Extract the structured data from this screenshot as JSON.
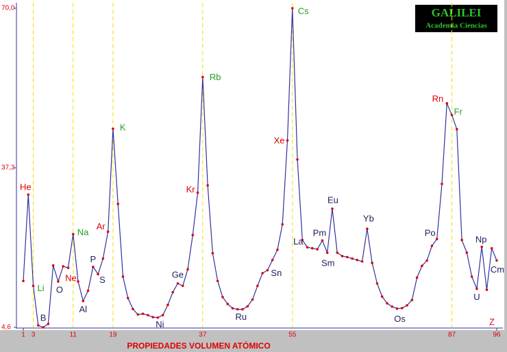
{
  "logo": {
    "title": "GALILEI",
    "subtitle": "Academia Ciencias"
  },
  "chart_data": {
    "type": "line",
    "title": "PROPIEDADES VOLUMEN ATÓMICO",
    "x_label": "Z",
    "x": [
      1,
      2,
      3,
      4,
      5,
      6,
      7,
      8,
      9,
      10,
      11,
      12,
      13,
      14,
      15,
      16,
      17,
      18,
      19,
      20,
      21,
      22,
      23,
      24,
      25,
      26,
      27,
      28,
      29,
      30,
      31,
      32,
      33,
      34,
      35,
      36,
      37,
      38,
      39,
      40,
      41,
      42,
      43,
      44,
      45,
      46,
      47,
      48,
      49,
      50,
      51,
      52,
      53,
      54,
      55,
      56,
      57,
      58,
      59,
      60,
      61,
      62,
      63,
      64,
      65,
      66,
      67,
      68,
      69,
      70,
      71,
      72,
      73,
      74,
      75,
      76,
      77,
      78,
      79,
      80,
      81,
      82,
      83,
      84,
      85,
      86,
      87,
      88,
      89,
      90,
      91,
      92,
      93,
      94,
      95,
      96
    ],
    "series": [
      {
        "name": "Volumen atómico",
        "color": "#3030a0",
        "point_color": "#e00000",
        "values": [
          14.1,
          31.8,
          13.1,
          5.0,
          4.6,
          5.3,
          17.3,
          14.0,
          17.1,
          16.8,
          23.7,
          14.0,
          10.0,
          12.1,
          17.0,
          15.5,
          18.7,
          24.2,
          45.3,
          29.9,
          15.0,
          10.6,
          8.35,
          7.23,
          7.39,
          7.1,
          6.7,
          6.6,
          7.1,
          9.2,
          11.8,
          13.6,
          13.1,
          16.5,
          23.5,
          32.2,
          55.9,
          33.7,
          19.8,
          14.1,
          10.8,
          9.4,
          8.5,
          8.3,
          8.3,
          8.9,
          10.3,
          13.1,
          15.7,
          16.3,
          18.4,
          20.5,
          25.7,
          42.9,
          70.0,
          39.0,
          22.5,
          21.0,
          20.8,
          20.6,
          22.4,
          19.9,
          28.9,
          19.9,
          19.2,
          19.0,
          18.7,
          18.4,
          18.1,
          24.8,
          17.8,
          13.6,
          10.9,
          9.53,
          8.85,
          8.43,
          8.54,
          9.1,
          10.2,
          14.8,
          17.2,
          18.3,
          21.3,
          22.7,
          34,
          50.5,
          48.1,
          45.2,
          22.5,
          19.9,
          15.0,
          12.5,
          21.1,
          12.3,
          20.8,
          18.3
        ]
      }
    ],
    "annotations": [
      {
        "text": "He",
        "x": 2,
        "color": "#e00000"
      },
      {
        "text": "Li",
        "x": 3,
        "color": "#20a020"
      },
      {
        "text": "B",
        "x": 5,
        "color": "#202060"
      },
      {
        "text": "O",
        "x": 8,
        "color": "#202060"
      },
      {
        "text": "Ne",
        "x": 10,
        "color": "#e00000"
      },
      {
        "text": "Na",
        "x": 11,
        "color": "#20a020"
      },
      {
        "text": "Al",
        "x": 13,
        "color": "#202060"
      },
      {
        "text": "P",
        "x": 15,
        "color": "#202060"
      },
      {
        "text": "S",
        "x": 16,
        "color": "#202060"
      },
      {
        "text": "Ar",
        "x": 18,
        "color": "#e00000"
      },
      {
        "text": "K",
        "x": 19,
        "color": "#20a020"
      },
      {
        "text": "Ge",
        "x": 32,
        "color": "#202060"
      },
      {
        "text": "Ni",
        "x": 28,
        "color": "#202060"
      },
      {
        "text": "Kr",
        "x": 36,
        "color": "#e00000"
      },
      {
        "text": "Rb",
        "x": 37,
        "color": "#20a020"
      },
      {
        "text": "Ru",
        "x": 44,
        "color": "#202060"
      },
      {
        "text": "Sn",
        "x": 50,
        "color": "#202060"
      },
      {
        "text": "Xe",
        "x": 54,
        "color": "#e00000"
      },
      {
        "text": "Cs",
        "x": 55,
        "color": "#20a020"
      },
      {
        "text": "La",
        "x": 57,
        "color": "#202060"
      },
      {
        "text": "Pm",
        "x": 61,
        "color": "#202060"
      },
      {
        "text": "Sm",
        "x": 62,
        "color": "#202060"
      },
      {
        "text": "Eu",
        "x": 63,
        "color": "#202060"
      },
      {
        "text": "Yb",
        "x": 70,
        "color": "#202060"
      },
      {
        "text": "Os",
        "x": 76,
        "color": "#202060"
      },
      {
        "text": "Po",
        "x": 84,
        "color": "#202060"
      },
      {
        "text": "Rn",
        "x": 86,
        "color": "#e00000"
      },
      {
        "text": "Fr",
        "x": 87,
        "color": "#20a020"
      },
      {
        "text": "U",
        "x": 92,
        "color": "#202060"
      },
      {
        "text": "Np",
        "x": 93,
        "color": "#202060"
      },
      {
        "text": "Cm",
        "x": 96,
        "color": "#202060"
      }
    ],
    "xlim": [
      1,
      96
    ],
    "xticks": [
      1,
      3,
      11,
      19,
      37,
      55,
      87,
      96
    ],
    "ylim": [
      4.6,
      70.0
    ],
    "yticks": [
      {
        "value": 4.6,
        "label": "4,6"
      },
      {
        "value": 37.3,
        "label": "37,3"
      },
      {
        "value": 70.0,
        "label": "70,0"
      }
    ],
    "grid": true,
    "grid_color": "#f0e000"
  }
}
